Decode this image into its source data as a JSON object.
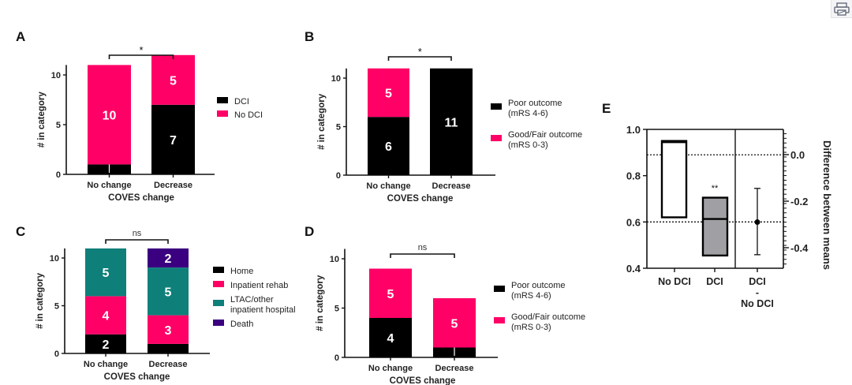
{
  "figure": {
    "panel_labels": [
      "A",
      "B",
      "C",
      "D",
      "E"
    ]
  },
  "colors": {
    "black": "#000000",
    "pink": "#ff0066",
    "teal": "#0f7f7a",
    "purple": "#3b0080",
    "gray": "#a0a0a4"
  },
  "toolbar": {
    "icon": "print-icon"
  },
  "chart_data": [
    {
      "id": "A",
      "type": "bar",
      "stacked": true,
      "title": "",
      "xlabel": "COVES change",
      "ylabel": "# in category",
      "categories": [
        "No change",
        "Decrease"
      ],
      "ylim": [
        0,
        11
      ],
      "yticks": [
        0,
        5,
        10
      ],
      "series": [
        {
          "name": "DCI",
          "color": "#000000",
          "values": [
            1,
            7
          ]
        },
        {
          "name": "No DCI",
          "color": "#ff0066",
          "values": [
            10,
            5
          ]
        }
      ],
      "data_labels": [
        [
          "1",
          "7"
        ],
        [
          "10",
          "5"
        ]
      ],
      "significance": "*",
      "legend": [
        "DCI",
        "No DCI"
      ],
      "legend_position": "right"
    },
    {
      "id": "B",
      "type": "bar",
      "stacked": true,
      "title": "",
      "xlabel": "COVES change",
      "ylabel": "# in category",
      "categories": [
        "No change",
        "Decrease"
      ],
      "ylim": [
        0,
        11
      ],
      "yticks": [
        0,
        5,
        10
      ],
      "series": [
        {
          "name": "Poor outcome (mRS 4-6)",
          "color": "#000000",
          "values": [
            6,
            11
          ]
        },
        {
          "name": "Good/Fair outcome (mRS 0-3)",
          "color": "#ff0066",
          "values": [
            5,
            0
          ]
        }
      ],
      "data_labels": [
        [
          "6",
          "11"
        ],
        [
          "5",
          ""
        ]
      ],
      "significance": "*",
      "legend": [
        [
          "Poor outcome",
          "(mRS 4-6)"
        ],
        [
          "Good/Fair outcome",
          "(mRS 0-3)"
        ]
      ],
      "legend_position": "right"
    },
    {
      "id": "C",
      "type": "bar",
      "stacked": true,
      "title": "",
      "xlabel": "COVES change",
      "ylabel": "# in category",
      "categories": [
        "No change",
        "Decrease"
      ],
      "ylim": [
        0,
        11
      ],
      "yticks": [
        0,
        5,
        10
      ],
      "series": [
        {
          "name": "Home",
          "color": "#000000",
          "values": [
            2,
            1
          ]
        },
        {
          "name": "Inpatient rehab",
          "color": "#ff0066",
          "values": [
            4,
            3
          ]
        },
        {
          "name": "LTAC/other inpatient hospital",
          "color": "#0f7f7a",
          "values": [
            5,
            5
          ]
        },
        {
          "name": "Death",
          "color": "#3b0080",
          "values": [
            0,
            2
          ]
        }
      ],
      "data_labels": [
        [
          "2",
          ""
        ],
        [
          "4",
          "3"
        ],
        [
          "5",
          "5"
        ],
        [
          "",
          "2"
        ]
      ],
      "significance": "ns",
      "legend": [
        [
          "Home"
        ],
        [
          "Inpatient rehab"
        ],
        [
          "LTAC/other",
          "inpatient hospital"
        ],
        [
          "Death"
        ]
      ],
      "legend_position": "right"
    },
    {
      "id": "D",
      "type": "bar",
      "stacked": true,
      "title": "",
      "xlabel": "COVES change",
      "ylabel": "# in category",
      "categories": [
        "No change",
        "Decrease"
      ],
      "ylim": [
        0,
        11
      ],
      "yticks": [
        0,
        5,
        10
      ],
      "series": [
        {
          "name": "Poor outcome (mRS 4-6)",
          "color": "#000000",
          "values": [
            4,
            1
          ]
        },
        {
          "name": "Good/Fair outcome (mRS 0-3)",
          "color": "#ff0066",
          "values": [
            5,
            5
          ]
        }
      ],
      "data_labels": [
        [
          "4",
          "1"
        ],
        [
          "5",
          "5"
        ]
      ],
      "significance": "ns",
      "legend": [
        [
          "Poor outcome",
          "(mRS 4-6)"
        ],
        [
          "Good/Fair outcome",
          "(mRS 0-3)"
        ]
      ],
      "legend_position": "right"
    },
    {
      "id": "E",
      "type": "estimation",
      "title": "",
      "categories": [
        "No DCI",
        "DCI",
        "DCI\n-\nNo DCI"
      ],
      "category_lines": [
        [
          "No DCI"
        ],
        [
          "DCI"
        ],
        [
          "DCI",
          "-",
          "No DCI"
        ]
      ],
      "ylim": [
        0.4,
        1.0
      ],
      "yticks": [
        0.4,
        0.6,
        0.8,
        1.0
      ],
      "ytick_labels": [
        "0.4",
        "0.6",
        "0.8",
        "1.0"
      ],
      "y2label": "Difference between means",
      "y2lim": [
        -0.48,
        0.11
      ],
      "y2ticks": [
        0.0,
        -0.2,
        -0.4
      ],
      "y2tick_labels": [
        "0.0",
        "-0.2",
        "-0.4"
      ],
      "boxes": [
        {
          "name": "No DCI",
          "low": 0.62,
          "high": 0.95,
          "mid": 0.945,
          "fill": "#ffffff"
        },
        {
          "name": "DCI",
          "low": 0.455,
          "high": 0.705,
          "mid": 0.613,
          "fill": "#a0a0a4"
        }
      ],
      "difference": {
        "mean": -0.29,
        "ci_low": -0.43,
        "ci_high": -0.145
      },
      "reference_lines": {
        "left_mean_no_dci": 0.89,
        "left_mean_dci": 0.6
      },
      "significance": "**"
    }
  ]
}
